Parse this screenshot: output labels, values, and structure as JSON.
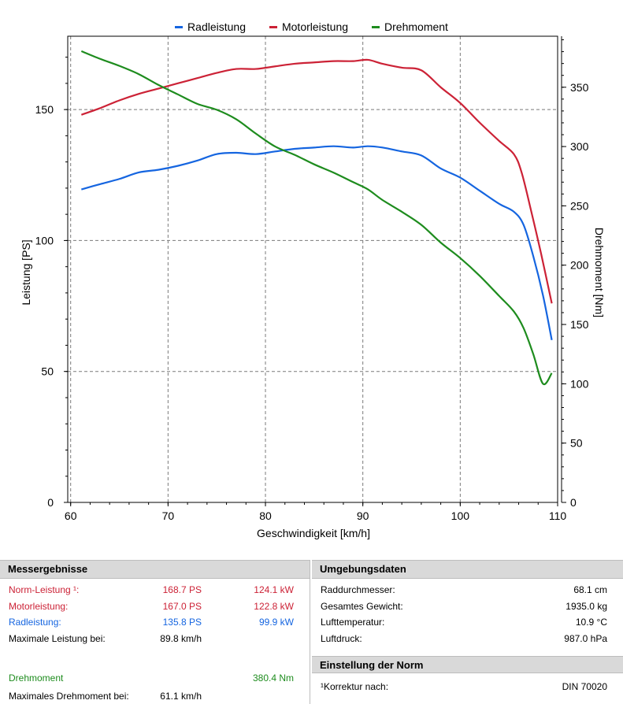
{
  "chart_data": {
    "type": "line",
    "xlabel": "Geschwindigkeit [km/h]",
    "ylabel_left": "Leistung [PS]",
    "ylabel_right": "Drehmoment [Nm]",
    "xlim": [
      59.7,
      110
    ],
    "xticks": [
      60,
      70,
      80,
      90,
      100,
      110
    ],
    "ylim_left": [
      0,
      178
    ],
    "yticks_left": [
      0,
      50,
      100,
      150
    ],
    "ylim_right": [
      0,
      393
    ],
    "yticks_right": [
      0,
      50,
      100,
      150,
      200,
      250,
      300,
      350
    ],
    "grid": true,
    "legend": "top-center",
    "series": [
      {
        "name": "Radleistung",
        "color": "#1565e0",
        "axis": "left",
        "x": [
          61.1,
          63,
          65,
          67,
          69,
          71,
          73,
          75,
          77,
          79,
          81,
          83,
          85,
          87,
          89,
          90.5,
          92,
          94,
          96,
          98,
          100,
          102,
          104,
          105.5,
          106.5,
          107.5,
          108.5,
          109.4
        ],
        "y": [
          119.5,
          121.5,
          123.5,
          126,
          127,
          128.5,
          130.5,
          133,
          133.5,
          133,
          134,
          135,
          135.5,
          136,
          135.5,
          136,
          135.5,
          134,
          132.5,
          127.5,
          124,
          119,
          114,
          111,
          106,
          94,
          79,
          62
        ]
      },
      {
        "name": "Motorleistung",
        "color": "#cc2236",
        "axis": "left",
        "x": [
          61.1,
          63,
          65,
          67,
          69,
          71,
          73,
          75,
          77,
          79,
          81,
          83,
          85,
          87,
          89,
          90.5,
          92,
          94,
          96,
          98,
          100,
          102,
          104,
          105.5,
          106.3,
          107.3,
          108.3,
          109.4
        ],
        "y": [
          148,
          150.5,
          153.5,
          156,
          158,
          160,
          162,
          164,
          165.5,
          165.5,
          166.5,
          167.5,
          168,
          168.5,
          168.5,
          169,
          167.5,
          166,
          165,
          158.5,
          152.5,
          145,
          138,
          133,
          126,
          111,
          95,
          76
        ]
      },
      {
        "name": "Drehmoment",
        "color": "#1e8c1e",
        "axis": "right",
        "x": [
          61.1,
          63,
          65,
          67,
          69,
          71,
          73,
          75,
          77,
          79,
          81,
          83,
          85,
          87,
          89,
          90.5,
          92,
          94,
          96,
          98,
          100,
          102,
          104,
          105.5,
          106.5,
          107.5,
          108.5,
          109.4
        ],
        "y": [
          380.4,
          374,
          368,
          361,
          352,
          344,
          336,
          331,
          323,
          311,
          300,
          293,
          285,
          278,
          270,
          264,
          255,
          245,
          234,
          219,
          206,
          191,
          174,
          161,
          147,
          125,
          100,
          109
        ]
      }
    ]
  },
  "results": {
    "header": "Messergebnisse",
    "rows": [
      {
        "label": "Norm-Leistung ¹:",
        "v1": "168.7 PS",
        "v2": "124.1 kW",
        "color": "red"
      },
      {
        "label": "Motorleistung:",
        "v1": "167.0 PS",
        "v2": "122.8 kW",
        "color": "red"
      },
      {
        "label": "Radleistung:",
        "v1": "135.8 PS",
        "v2": "99.9 kW",
        "color": "blue"
      },
      {
        "label": "Maximale Leistung bei:",
        "v1": "89.8 km/h",
        "v2": "",
        "color": "black"
      },
      {
        "label": "Drehmoment",
        "v1": "",
        "v2": "380.4 Nm",
        "color": "green"
      },
      {
        "label": "Maximales Drehmoment bei:",
        "v1": "61.1 km/h",
        "v2": "",
        "color": "black"
      }
    ]
  },
  "environment": {
    "header": "Umgebungsdaten",
    "rows": [
      {
        "label": "Raddurchmesser:",
        "value": "68.1 cm"
      },
      {
        "label": "Gesamtes Gewicht:",
        "value": "1935.0 kg"
      },
      {
        "label": "Lufttemperatur:",
        "value": "10.9 °C"
      },
      {
        "label": "Luftdruck:",
        "value": "987.0 hPa"
      }
    ]
  },
  "norm": {
    "header": "Einstellung der Norm",
    "label": "¹Korrektur nach:",
    "value": "DIN 70020"
  }
}
